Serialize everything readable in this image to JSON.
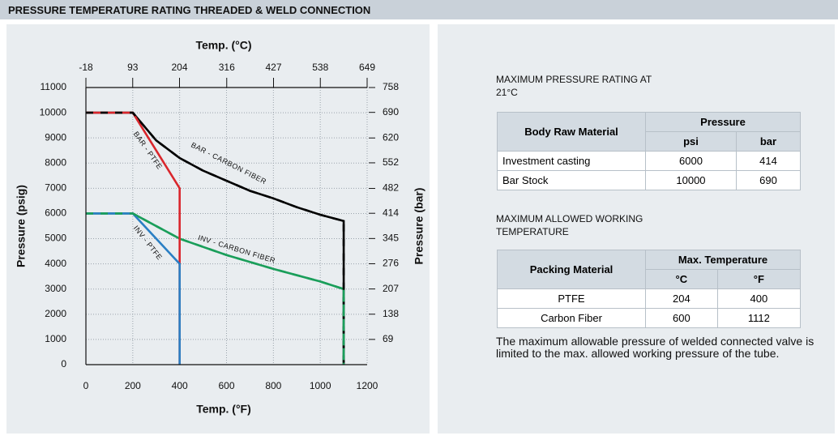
{
  "header": {
    "title": "PRESSURE TEMPERATURE RATING THREADED & WELD CONNECTION"
  },
  "chart_data": {
    "type": "line",
    "x_label": "Temp. (°F)",
    "x2_label": "Temp. (°C)",
    "y_label": "Pressure (psig)",
    "y2_label": "Pressure (bar)",
    "xlim": [
      0,
      1200
    ],
    "xticks": [
      0,
      200,
      400,
      600,
      800,
      1000,
      1200
    ],
    "x2lim": [
      -18,
      649
    ],
    "x2ticks": [
      -18,
      93,
      204,
      316,
      427,
      538,
      649
    ],
    "ylim": [
      0,
      11000
    ],
    "yticks": [
      0,
      1000,
      2000,
      3000,
      4000,
      5000,
      6000,
      7000,
      8000,
      9000,
      10000,
      11000
    ],
    "y2lim": [
      0,
      758
    ],
    "y2ticks": [
      69,
      138,
      207,
      276,
      345,
      414,
      482,
      552,
      620,
      690,
      758
    ],
    "grid": true,
    "series": [
      {
        "name": "BAR - CARBON FIBER",
        "color": "#000000",
        "x": [
          0,
          200,
          300,
          400,
          500,
          600,
          700,
          800,
          900,
          1000,
          1100,
          1100
        ],
        "values": [
          10000,
          10000,
          8900,
          8200,
          7700,
          7300,
          6900,
          6600,
          6250,
          5950,
          5700,
          0
        ]
      },
      {
        "name": "INV - CARBON FIBER",
        "color": "#1a9e5a",
        "x": [
          0,
          200,
          400,
          600,
          800,
          1000,
          1100,
          1100
        ],
        "values": [
          6000,
          6000,
          5000,
          4350,
          3800,
          3300,
          3000,
          0
        ]
      },
      {
        "name": "BAR - PTFE",
        "color": "#d9262c",
        "x": [
          0,
          200,
          400,
          400
        ],
        "values": [
          10000,
          10000,
          7000,
          0
        ]
      },
      {
        "name": "INV - PTFE",
        "color": "#2a7fc4",
        "x": [
          0,
          200,
          400,
          400
        ],
        "values": [
          6000,
          6000,
          4000,
          0
        ]
      }
    ]
  },
  "table1": {
    "title": "MAXIMUM PRESSURE RATING AT 21°C",
    "header": [
      "Body Raw Material",
      "Pressure"
    ],
    "subheader": [
      "psi",
      "bar"
    ],
    "rows": [
      [
        "Investment casting",
        6000,
        414
      ],
      [
        "Bar Stock",
        10000,
        690
      ]
    ]
  },
  "table2": {
    "title": "MAXIMUM ALLOWED WORKING TEMPERATURE",
    "header": [
      "Packing Material",
      "Max. Temperature"
    ],
    "subheader": [
      "°C",
      "°F"
    ],
    "rows": [
      [
        "PTFE",
        204,
        400
      ],
      [
        "Carbon Fiber",
        600,
        1112
      ]
    ]
  },
  "note": "The maximum allowable pressure of welded connected valve is limited to the max. allowed working pressure of the tube."
}
